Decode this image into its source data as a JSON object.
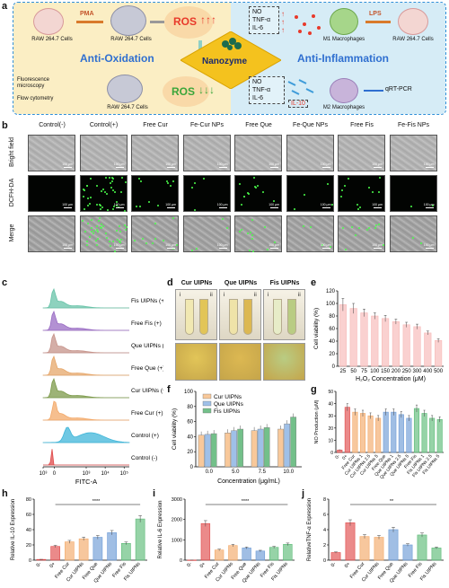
{
  "panel_labels": {
    "a": "a",
    "b": "b",
    "c": "c",
    "d": "d",
    "e": "e",
    "f": "f",
    "g": "g",
    "h": "h",
    "i": "i",
    "j": "j"
  },
  "panel_a": {
    "raw_cells_1": "RAW 264.7 Cells",
    "pma": "PMA",
    "raw_cells_2": "RAW 264.7 Cells",
    "ros_top": "ROS",
    "anti_oxidation": "Anti-Oxidation",
    "nanozyme": "Nanozyme",
    "fluorescence": "Fluorescence microscopy",
    "flow": "Flow cytometry",
    "ros_bottom": "ROS",
    "raw_cells_3": "RAW 264.7 Cells",
    "no_up": "NO",
    "tnf_up": "TNF-α",
    "il6_up": "IL-6",
    "m1": "M1 Macrophages",
    "lps": "LPS",
    "raw_cells_4": "RAW 264.7 Cells",
    "anti_inflammation": "Anti-Inflammation",
    "no_down": "NO",
    "tnf_down": "TNF-α",
    "il6_down": "IL-6",
    "il10_up": "IL-10",
    "m2": "M2 Macrophages",
    "qrt": "qRT-PCR"
  },
  "panel_b": {
    "columns": [
      "Control(-)",
      "Control(+)",
      "Free Cur",
      "Fe-Cur NPs",
      "Free Que",
      "Fe-Que NPs",
      "Free Fis",
      "Fe-Fis NPs"
    ],
    "rows": [
      "Bright field",
      "DCFH-DA",
      "Merge"
    ],
    "scale_bar": "100 μm",
    "green_signal": [
      0,
      1.0,
      0.25,
      0.1,
      0.3,
      0.1,
      0.28,
      0.06
    ]
  },
  "panel_c": {
    "labels": [
      "Fis UIPNs (+)",
      "Free Fis (+)",
      "Que UIPNs (+)",
      "Free Que (+)",
      "Cur UIPNs (+)",
      "Free Cur (+)",
      "Control (+)",
      "Control (-)"
    ],
    "colors": [
      "#68c3a8",
      "#9a6cc4",
      "#c6938a",
      "#e6a76a",
      "#7c9a49",
      "#f3a969",
      "#3fb6d9",
      "#e04b4b"
    ],
    "xlabel": "FITC-A",
    "ticks": [
      "10³",
      "0",
      "10³",
      "10⁴",
      "10⁵"
    ]
  },
  "panel_d": {
    "titles": [
      "Cur UIPNs",
      "Que UIPNs",
      "Fis UIPNs"
    ],
    "sub": [
      "i",
      "ii"
    ]
  },
  "chart_data": [
    {
      "panel": "e",
      "type": "bar",
      "xlabel": "H₂O₂ Concentration (μM)",
      "ylabel": "Cell viability (%)",
      "ylim": [
        0,
        120
      ],
      "yticks": [
        0,
        20,
        40,
        60,
        80,
        100,
        120
      ],
      "categories": [
        "25",
        "50",
        "75",
        "100",
        "150",
        "200",
        "250",
        "300",
        "400",
        "500"
      ],
      "values": [
        98,
        92,
        85,
        80,
        76,
        71,
        66,
        63,
        53,
        41
      ],
      "errors": [
        10,
        8,
        6,
        5,
        5,
        4,
        4,
        4,
        3,
        3
      ],
      "color": "#f7b9b7"
    },
    {
      "panel": "f",
      "type": "bar",
      "xlabel": "Concentration (μg/mL)",
      "ylabel": "Cell viability (%)",
      "ylim": [
        0,
        100
      ],
      "yticks": [
        0,
        20,
        40,
        60,
        80,
        100
      ],
      "categories": [
        "0.0",
        "5.0",
        "7.5",
        "10.0"
      ],
      "series": [
        {
          "name": "Cur UIPNs",
          "values": [
            42,
            45,
            48,
            50
          ],
          "color": "#f8c89a"
        },
        {
          "name": "Que UIPNs",
          "values": [
            43,
            48,
            50,
            57
          ],
          "color": "#9fc0e8"
        },
        {
          "name": "Fis UIPNs",
          "values": [
            44,
            50,
            52,
            66
          ],
          "color": "#73c08a"
        }
      ]
    },
    {
      "panel": "g",
      "type": "bar",
      "ylabel": "NO Production (μM)",
      "ylim": [
        0,
        50
      ],
      "yticks": [
        0,
        10,
        20,
        30,
        40,
        50
      ],
      "categories": [
        "0-",
        "0+",
        "Free Cur",
        "Cur UIPNs 1",
        "Cur UIPNs 2.5",
        "Cur UIPNs 5",
        "Free Que",
        "Que UIPNs 1",
        "Que UIPNs 2.5",
        "Que UIPNs 5",
        "Free Fis",
        "Fis UIPNs 1",
        "Fis UIPNs 2.5",
        "Fis UIPNs 5"
      ],
      "values": [
        2,
        37,
        33,
        32,
        30,
        28,
        33,
        33,
        31,
        28,
        36,
        32,
        28,
        27
      ],
      "colors": [
        "#e04b4b",
        "#e04b4b",
        "#f3a969",
        "#f3a969",
        "#f3a969",
        "#f3a969",
        "#6d9bd6",
        "#6d9bd6",
        "#6d9bd6",
        "#6d9bd6",
        "#5dbb78",
        "#5dbb78",
        "#5dbb78",
        "#5dbb78"
      ]
    },
    {
      "panel": "h",
      "type": "bar",
      "ylabel": "Relative IL-10 Expression",
      "ylim": [
        0,
        80
      ],
      "yticks": [
        0,
        20,
        40,
        60,
        80
      ],
      "categories": [
        "0-",
        "0+",
        "Free Cur",
        "Cur UIPNs",
        "Free Que",
        "Que UIPNs",
        "Free Fis",
        "Fis UIPNs"
      ],
      "values": [
        1,
        18,
        24,
        28,
        30,
        36,
        22,
        54
      ],
      "colors": [
        "#e04b4b",
        "#e04b4b",
        "#f3a969",
        "#f3a969",
        "#6d9bd6",
        "#6d9bd6",
        "#5dbb78",
        "#5dbb78"
      ],
      "significance": "****"
    },
    {
      "panel": "i",
      "type": "bar",
      "ylabel": "Relative IL-6 Expression",
      "ylim": [
        0,
        3000
      ],
      "yticks": [
        0,
        1000,
        2000,
        3000
      ],
      "categories": [
        "0-",
        "0+",
        "Free Cur",
        "Cur UIPNs",
        "Free Que",
        "Que UIPNs",
        "Free Fis",
        "Fis UIPNs"
      ],
      "values": [
        5,
        1800,
        500,
        720,
        600,
        450,
        630,
        780
      ],
      "colors": [
        "#e04b4b",
        "#e04b4b",
        "#f3a969",
        "#f3a969",
        "#6d9bd6",
        "#6d9bd6",
        "#5dbb78",
        "#5dbb78"
      ],
      "significance": "****"
    },
    {
      "panel": "j",
      "type": "bar",
      "ylabel": "RelativeTNF-α Expression",
      "ylim": [
        0,
        8
      ],
      "yticks": [
        0,
        2,
        4,
        6,
        8
      ],
      "categories": [
        "0-",
        "0+",
        "Free Cur",
        "Cur UIPNs",
        "Free Que",
        "Que UIPNs",
        "Free Fis",
        "Fis UIPNs"
      ],
      "values": [
        1,
        4.9,
        3.1,
        3.0,
        4.0,
        2.0,
        3.3,
        1.6
      ],
      "colors": [
        "#e04b4b",
        "#e04b4b",
        "#f3a969",
        "#f3a969",
        "#6d9bd6",
        "#6d9bd6",
        "#5dbb78",
        "#5dbb78"
      ],
      "significance": "**"
    }
  ]
}
